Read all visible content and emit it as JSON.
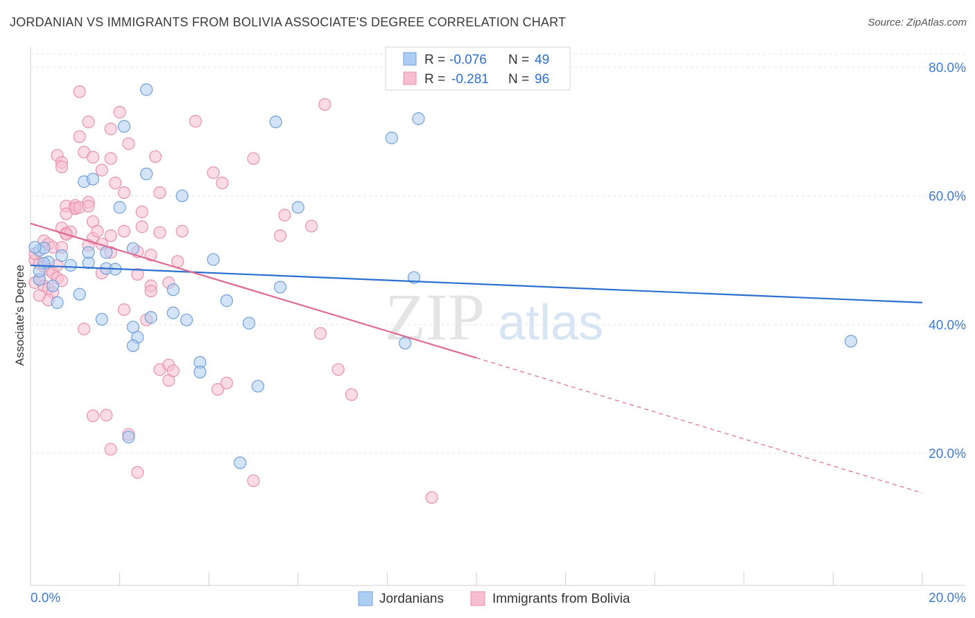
{
  "title": "JORDANIAN VS IMMIGRANTS FROM BOLIVIA ASSOCIATE'S DEGREE CORRELATION CHART",
  "source": "Source: ZipAtlas.com",
  "watermark": {
    "zip": "ZIP",
    "atlas": "atlas"
  },
  "colors": {
    "blue_fill": "#aecdf3",
    "blue_stroke": "#6f9fd8",
    "blue_line": "#2a6fcf",
    "pink_fill": "#f7bdd0",
    "pink_stroke": "#e890ad",
    "pink_line": "#e0688f",
    "tick_label": "#3d7bd6",
    "grid": "#e6e6e6"
  },
  "legend": {
    "row1": {
      "r_label": "R = ",
      "r_value": "-0.076",
      "n_label": "N = ",
      "n_value": "49"
    },
    "row2": {
      "r_label": "R = ",
      "r_value": "-0.281",
      "n_label": "N = ",
      "n_value": "96"
    }
  },
  "bottom_legend": [
    "Jordanians",
    "Immigrants from Bolivia"
  ],
  "chart_data": {
    "type": "scatter",
    "title": "JORDANIAN VS IMMIGRANTS FROM BOLIVIA ASSOCIATE'S DEGREE CORRELATION CHART",
    "xlabel": "",
    "ylabel": "Associate's Degree",
    "xlim": [
      0,
      20
    ],
    "ylim": [
      0,
      82
    ],
    "x_tick_labels": [
      "0.0%",
      "20.0%"
    ],
    "y_ticks": [
      20,
      40,
      60,
      80
    ],
    "y_tick_labels": [
      "20.0%",
      "40.0%",
      "60.0%",
      "80.0%"
    ],
    "grid": true,
    "legend_position": "top-center",
    "series": [
      {
        "name": "Jordanians",
        "r": -0.076,
        "n": 49,
        "trend": {
          "x": [
            0,
            20
          ],
          "y": [
            49.2,
            43.4
          ]
        },
        "points": [
          [
            2.6,
            76.5
          ],
          [
            2.1,
            70.8
          ],
          [
            5.5,
            71.5
          ],
          [
            8.1,
            69.0
          ],
          [
            8.7,
            72.0
          ],
          [
            1.2,
            62.2
          ],
          [
            1.4,
            62.6
          ],
          [
            2.6,
            63.4
          ],
          [
            3.4,
            60.0
          ],
          [
            2.0,
            58.2
          ],
          [
            6.0,
            58.2
          ],
          [
            0.2,
            51.5
          ],
          [
            0.3,
            51.9
          ],
          [
            0.4,
            49.7
          ],
          [
            0.7,
            50.7
          ],
          [
            0.9,
            49.2
          ],
          [
            1.3,
            49.6
          ],
          [
            1.3,
            51.2
          ],
          [
            1.7,
            51.2
          ],
          [
            1.7,
            48.7
          ],
          [
            1.9,
            48.6
          ],
          [
            2.3,
            51.8
          ],
          [
            4.1,
            50.1
          ],
          [
            0.2,
            47.0
          ],
          [
            0.3,
            49.5
          ],
          [
            0.5,
            46.0
          ],
          [
            0.6,
            43.4
          ],
          [
            1.1,
            44.7
          ],
          [
            3.2,
            45.4
          ],
          [
            5.6,
            45.8
          ],
          [
            8.6,
            47.3
          ],
          [
            4.4,
            43.7
          ],
          [
            1.6,
            40.8
          ],
          [
            2.3,
            39.6
          ],
          [
            2.7,
            41.1
          ],
          [
            3.2,
            41.8
          ],
          [
            3.5,
            40.7
          ],
          [
            4.9,
            40.2
          ],
          [
            8.4,
            37.1
          ],
          [
            18.4,
            37.4
          ],
          [
            2.4,
            38.0
          ],
          [
            2.3,
            36.7
          ],
          [
            3.8,
            34.1
          ],
          [
            3.8,
            32.6
          ],
          [
            5.1,
            30.4
          ],
          [
            2.2,
            22.5
          ],
          [
            4.7,
            18.5
          ],
          [
            0.1,
            52.0
          ],
          [
            0.2,
            48.3
          ]
        ]
      },
      {
        "name": "Immigrants from Bolivia",
        "r": -0.281,
        "n": 96,
        "trend": {
          "x": [
            0,
            10
          ],
          "y": [
            55.7,
            34.8
          ]
        },
        "trend_ext": {
          "x": [
            10,
            20
          ],
          "y": [
            34.8,
            13.8
          ]
        },
        "points": [
          [
            1.1,
            76.2
          ],
          [
            6.6,
            74.2
          ],
          [
            2.0,
            73.0
          ],
          [
            1.3,
            71.5
          ],
          [
            1.8,
            70.4
          ],
          [
            3.7,
            71.6
          ],
          [
            1.1,
            69.2
          ],
          [
            2.2,
            68.1
          ],
          [
            0.6,
            66.3
          ],
          [
            1.2,
            66.8
          ],
          [
            1.4,
            66.0
          ],
          [
            1.8,
            65.8
          ],
          [
            2.8,
            66.1
          ],
          [
            0.7,
            65.2
          ],
          [
            0.7,
            64.5
          ],
          [
            1.6,
            64.0
          ],
          [
            4.1,
            63.6
          ],
          [
            4.3,
            62.0
          ],
          [
            1.9,
            62.0
          ],
          [
            2.1,
            60.5
          ],
          [
            2.9,
            60.5
          ],
          [
            5.0,
            65.8
          ],
          [
            1.3,
            59.0
          ],
          [
            0.8,
            58.4
          ],
          [
            1.0,
            58.0
          ],
          [
            1.0,
            58.5
          ],
          [
            1.0,
            58.1
          ],
          [
            1.1,
            58.2
          ],
          [
            1.3,
            58.4
          ],
          [
            2.5,
            57.5
          ],
          [
            5.7,
            57.0
          ],
          [
            0.8,
            57.2
          ],
          [
            1.4,
            56.0
          ],
          [
            0.7,
            55.0
          ],
          [
            0.8,
            54.2
          ],
          [
            0.9,
            54.4
          ],
          [
            1.4,
            53.4
          ],
          [
            1.5,
            54.5
          ],
          [
            1.8,
            53.8
          ],
          [
            2.1,
            54.5
          ],
          [
            2.5,
            55.2
          ],
          [
            2.9,
            54.3
          ],
          [
            3.4,
            54.5
          ],
          [
            5.6,
            53.8
          ],
          [
            6.3,
            55.3
          ],
          [
            0.3,
            53.0
          ],
          [
            0.4,
            52.5
          ],
          [
            0.5,
            52.0
          ],
          [
            0.7,
            52.0
          ],
          [
            0.8,
            54.0
          ],
          [
            1.3,
            52.3
          ],
          [
            1.6,
            52.5
          ],
          [
            1.8,
            51.2
          ],
          [
            2.4,
            51.3
          ],
          [
            2.7,
            50.8
          ],
          [
            3.3,
            49.8
          ],
          [
            0.1,
            50.0
          ],
          [
            0.2,
            49.5
          ],
          [
            0.3,
            49.0
          ],
          [
            0.4,
            48.5
          ],
          [
            0.5,
            48.0
          ],
          [
            0.6,
            47.2
          ],
          [
            0.7,
            46.8
          ],
          [
            0.1,
            46.5
          ],
          [
            0.2,
            47.0
          ],
          [
            0.3,
            46.0
          ],
          [
            0.4,
            45.6
          ],
          [
            0.5,
            45.0
          ],
          [
            1.6,
            48.0
          ],
          [
            2.4,
            47.8
          ],
          [
            2.7,
            46.0
          ],
          [
            2.7,
            45.2
          ],
          [
            3.1,
            46.5
          ],
          [
            0.4,
            43.8
          ],
          [
            0.2,
            44.5
          ],
          [
            2.1,
            42.3
          ],
          [
            2.6,
            40.7
          ],
          [
            1.2,
            39.3
          ],
          [
            6.5,
            38.6
          ],
          [
            2.9,
            33.0
          ],
          [
            3.1,
            33.7
          ],
          [
            3.1,
            31.3
          ],
          [
            3.2,
            32.8
          ],
          [
            4.2,
            29.9
          ],
          [
            4.4,
            30.9
          ],
          [
            6.9,
            33.0
          ],
          [
            7.2,
            29.1
          ],
          [
            1.4,
            25.8
          ],
          [
            1.7,
            25.9
          ],
          [
            2.2,
            22.9
          ],
          [
            1.8,
            20.6
          ],
          [
            2.4,
            17.0
          ],
          [
            5.0,
            15.7
          ],
          [
            9.0,
            13.1
          ],
          [
            0.1,
            51.0
          ],
          [
            0.6,
            49.2
          ]
        ]
      }
    ]
  }
}
